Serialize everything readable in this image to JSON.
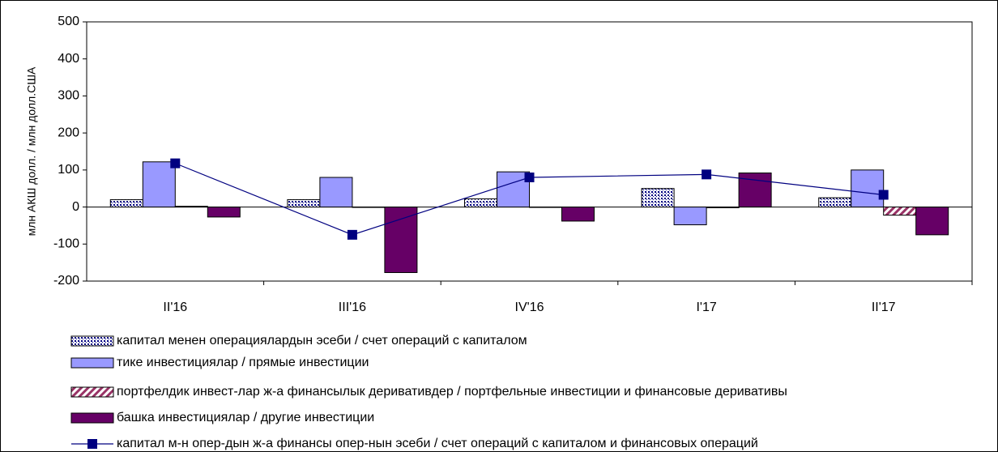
{
  "chart_data": {
    "type": "bar",
    "y_axis_label": "млн АКШ долл. / млн долл.США",
    "categories": [
      "II'16",
      "III'16",
      "IV'16",
      "I'17",
      "II'17"
    ],
    "series": [
      {
        "name": "капитал менен операциялардын эсеби / счет операций с капиталом",
        "type": "bar",
        "color": "#000080",
        "pattern": "dots",
        "values": [
          20,
          20,
          22,
          50,
          25
        ]
      },
      {
        "name": "тике инвестициялар / прямые инвестиции",
        "type": "bar",
        "color": "#9999ff",
        "values": [
          122,
          80,
          95,
          -48,
          100
        ]
      },
      {
        "name": "портфелдик инвест-лар ж-а финансылык деривативдер / портфельные инвестиции и финансовые деривативы",
        "type": "bar",
        "color": "#993366",
        "pattern": "hatch",
        "values": [
          2,
          0,
          0,
          -2,
          -22
        ]
      },
      {
        "name": "башка инвестициялар / другие инвестиции",
        "type": "bar",
        "color": "#660066",
        "values": [
          -27,
          -177,
          -38,
          92,
          -75
        ]
      },
      {
        "name": "капитал м-н опер-дын ж-а финансы опер-нын эсеби / счет операций с капиталом и финансовых операций",
        "type": "line",
        "color": "#000080",
        "values": [
          118,
          -75,
          80,
          88,
          33
        ]
      }
    ],
    "ylim": [
      -200,
      500
    ],
    "yticks": [
      -200,
      -100,
      0,
      100,
      200,
      300,
      400,
      500
    ],
    "legend": "bottom"
  }
}
